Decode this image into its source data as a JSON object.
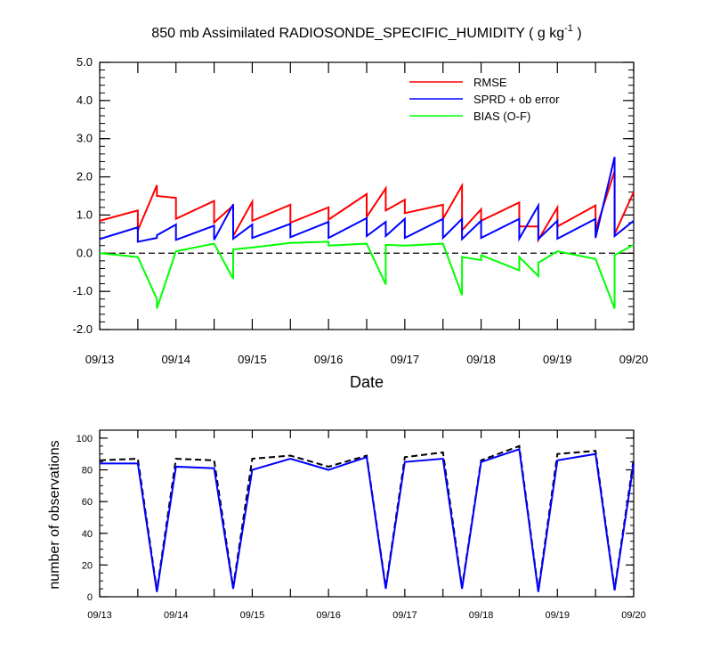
{
  "chart_data": [
    {
      "type": "line",
      "title": "850 mb Assimilated RADIOSONDE_SPECIFIC_HUMIDITY ( g kg",
      "title_sup": "-1",
      "title_end": " )",
      "xlabel": "Date",
      "ylabel": "",
      "x_ticks": [
        "09/13",
        "09/14",
        "09/15",
        "09/16",
        "09/17",
        "09/18",
        "09/19",
        "09/20"
      ],
      "y_ticks": [
        "-2.0",
        "-1.0",
        "0.0",
        "1.0",
        "2.0",
        "3.0",
        "4.0",
        "5.0"
      ],
      "xlim": [
        0,
        7
      ],
      "ylim": [
        -2,
        5
      ],
      "zero_line": "dashed",
      "grid": false,
      "legend_position": "top-right",
      "series": [
        {
          "name": "RMSE",
          "color": "#ff0000",
          "points": [
            [
              0,
              0.85
            ],
            [
              0.5,
              1.12
            ],
            [
              0.5,
              0.6
            ],
            [
              0.75,
              1.78
            ],
            [
              0.75,
              1.5
            ],
            [
              1,
              1.45
            ],
            [
              1,
              0.9
            ],
            [
              1.5,
              1.37
            ],
            [
              1.5,
              0.8
            ],
            [
              1.75,
              1.25
            ],
            [
              1.75,
              0.45
            ],
            [
              2,
              1.35
            ],
            [
              2,
              0.85
            ],
            [
              2.5,
              1.27
            ],
            [
              2.5,
              0.8
            ],
            [
              3,
              1.2
            ],
            [
              3,
              0.88
            ],
            [
              3.5,
              1.55
            ],
            [
              3.5,
              0.95
            ],
            [
              3.75,
              1.7
            ],
            [
              3.75,
              1.12
            ],
            [
              4,
              1.4
            ],
            [
              4,
              1.05
            ],
            [
              4.5,
              1.27
            ],
            [
              4.5,
              0.9
            ],
            [
              4.75,
              1.77
            ],
            [
              4.75,
              0.6
            ],
            [
              5,
              1.15
            ],
            [
              5,
              0.85
            ],
            [
              5.5,
              1.33
            ],
            [
              5.5,
              0.7
            ],
            [
              5.75,
              0.7
            ],
            [
              5.75,
              0.35
            ],
            [
              6,
              1.2
            ],
            [
              6,
              0.7
            ],
            [
              6.5,
              1.25
            ],
            [
              6.5,
              0.6
            ],
            [
              6.75,
              2.15
            ],
            [
              6.75,
              0.5
            ],
            [
              7,
              1.6
            ]
          ]
        },
        {
          "name": "SPRD + ob error",
          "color": "#0000ff",
          "points": [
            [
              0,
              0.37
            ],
            [
              0.5,
              0.68
            ],
            [
              0.5,
              0.3
            ],
            [
              0.75,
              0.4
            ],
            [
              0.75,
              0.47
            ],
            [
              1,
              0.75
            ],
            [
              1,
              0.35
            ],
            [
              1.5,
              0.72
            ],
            [
              1.5,
              0.35
            ],
            [
              1.75,
              1.28
            ],
            [
              1.75,
              0.38
            ],
            [
              2,
              0.75
            ],
            [
              2,
              0.4
            ],
            [
              2.5,
              0.77
            ],
            [
              2.5,
              0.42
            ],
            [
              3,
              0.82
            ],
            [
              3,
              0.4
            ],
            [
              3.5,
              0.92
            ],
            [
              3.5,
              0.45
            ],
            [
              3.75,
              0.82
            ],
            [
              3.75,
              0.45
            ],
            [
              4,
              0.9
            ],
            [
              4,
              0.4
            ],
            [
              4.5,
              0.9
            ],
            [
              4.5,
              0.4
            ],
            [
              4.75,
              0.9
            ],
            [
              4.75,
              0.37
            ],
            [
              5,
              0.85
            ],
            [
              5,
              0.4
            ],
            [
              5.5,
              0.9
            ],
            [
              5.5,
              0.38
            ],
            [
              5.75,
              1.25
            ],
            [
              5.75,
              0.37
            ],
            [
              6,
              0.85
            ],
            [
              6,
              0.38
            ],
            [
              6.5,
              0.9
            ],
            [
              6.5,
              0.4
            ],
            [
              6.75,
              2.52
            ],
            [
              6.75,
              0.45
            ],
            [
              7,
              0.85
            ]
          ]
        },
        {
          "name": "BIAS (O-F)",
          "color": "#00ff00",
          "points": [
            [
              0,
              0.0
            ],
            [
              0.5,
              -0.1
            ],
            [
              0.75,
              -1.2
            ],
            [
              0.75,
              -1.45
            ],
            [
              1,
              0.05
            ],
            [
              1.5,
              0.25
            ],
            [
              1.75,
              -0.67
            ],
            [
              1.75,
              0.1
            ],
            [
              2,
              0.15
            ],
            [
              2.5,
              0.27
            ],
            [
              3,
              0.3
            ],
            [
              3,
              0.2
            ],
            [
              3.5,
              0.25
            ],
            [
              3.75,
              -0.82
            ],
            [
              3.75,
              0.22
            ],
            [
              4,
              0.2
            ],
            [
              4.5,
              0.25
            ],
            [
              4.75,
              -1.1
            ],
            [
              4.75,
              -0.1
            ],
            [
              5,
              -0.18
            ],
            [
              5,
              -0.05
            ],
            [
              5.5,
              -0.45
            ],
            [
              5.5,
              -0.1
            ],
            [
              5.75,
              -0.6
            ],
            [
              5.75,
              -0.25
            ],
            [
              6,
              0.05
            ],
            [
              6.5,
              -0.15
            ],
            [
              6.75,
              -1.45
            ],
            [
              6.75,
              -0.05
            ],
            [
              7,
              0.22
            ]
          ]
        }
      ]
    },
    {
      "type": "line",
      "title": "",
      "xlabel": "",
      "ylabel": "number of observations",
      "x_ticks": [
        "09/13",
        "09/14",
        "09/15",
        "09/16",
        "09/17",
        "09/18",
        "09/19",
        "09/20"
      ],
      "y_ticks": [
        "0",
        "20",
        "40",
        "60",
        "80",
        "100"
      ],
      "xlim": [
        0,
        7
      ],
      "ylim": [
        0,
        105
      ],
      "grid": false,
      "series": [
        {
          "name": "",
          "style": "dashed",
          "color": "#000000",
          "points": [
            [
              0,
              86
            ],
            [
              0.5,
              87
            ],
            [
              0.75,
              4
            ],
            [
              1,
              87
            ],
            [
              1.5,
              86
            ],
            [
              1.75,
              6
            ],
            [
              2,
              87
            ],
            [
              2.5,
              89
            ],
            [
              3,
              82
            ],
            [
              3.5,
              89
            ],
            [
              3.75,
              6
            ],
            [
              4,
              88
            ],
            [
              4.5,
              91
            ],
            [
              4.75,
              6
            ],
            [
              5,
              86
            ],
            [
              5.5,
              95
            ],
            [
              5.75,
              4
            ],
            [
              6,
              90
            ],
            [
              6.5,
              92
            ],
            [
              6.75,
              5
            ],
            [
              7,
              87
            ]
          ]
        },
        {
          "name": "",
          "style": "solid",
          "color": "#0000ff",
          "points": [
            [
              0,
              84
            ],
            [
              0.5,
              84
            ],
            [
              0.75,
              3
            ],
            [
              1,
              82
            ],
            [
              1.5,
              81
            ],
            [
              1.75,
              5
            ],
            [
              2,
              80
            ],
            [
              2.5,
              87
            ],
            [
              3,
              80
            ],
            [
              3.5,
              88
            ],
            [
              3.75,
              5
            ],
            [
              4,
              85
            ],
            [
              4.5,
              87
            ],
            [
              4.75,
              5
            ],
            [
              5,
              85
            ],
            [
              5.5,
              93
            ],
            [
              5.75,
              3
            ],
            [
              6,
              86
            ],
            [
              6.5,
              90
            ],
            [
              6.75,
              4
            ],
            [
              7,
              84
            ]
          ]
        }
      ]
    }
  ]
}
